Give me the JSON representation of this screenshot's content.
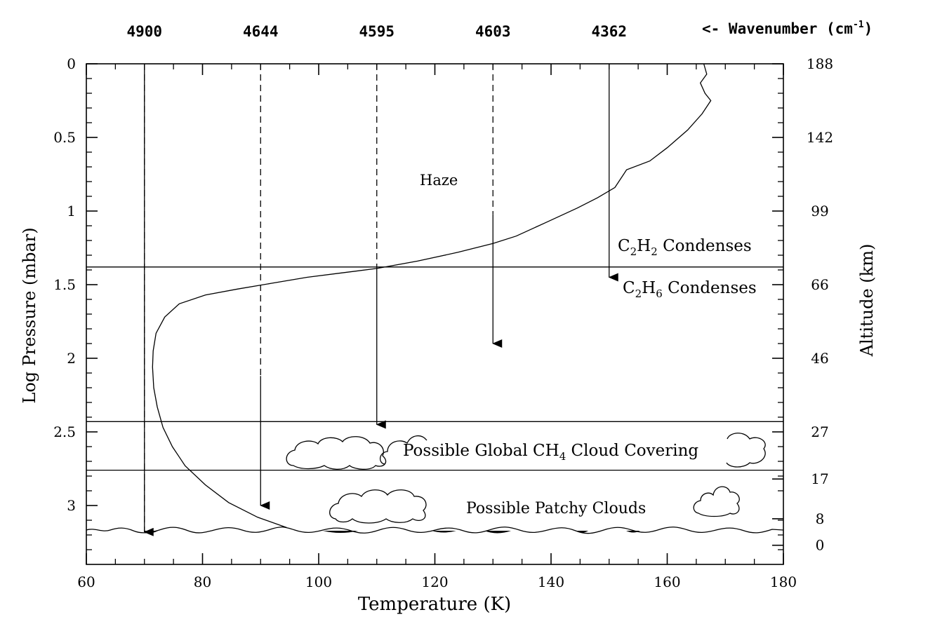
{
  "chart_data": {
    "type": "line",
    "title": "",
    "xlabel": "Temperature (K)",
    "ylabel": "Log Pressure (mbar)",
    "y2label": "Altitude (km)",
    "toplabel": "<- Wavenumber (cm",
    "toplabel_sup": "-1",
    "toplabel_close": ")",
    "xlim": [
      60,
      180
    ],
    "ylim": [
      0,
      3.4
    ],
    "y_inverted": true,
    "x_ticks": [
      60,
      80,
      100,
      120,
      140,
      160,
      180
    ],
    "y_ticks": [
      {
        "value": 0,
        "label": "0"
      },
      {
        "value": 0.5,
        "label": "0.5"
      },
      {
        "value": 1,
        "label": "1"
      },
      {
        "value": 1.5,
        "label": "1.5"
      },
      {
        "value": 2,
        "label": "2"
      },
      {
        "value": 2.5,
        "label": "2.5"
      },
      {
        "value": 3,
        "label": "3"
      }
    ],
    "altitude_ticks": [
      {
        "log_p": 0,
        "label": "188"
      },
      {
        "log_p": 0.5,
        "label": "142"
      },
      {
        "log_p": 1.0,
        "label": "99"
      },
      {
        "log_p": 1.5,
        "label": "66"
      },
      {
        "log_p": 2.0,
        "label": "46"
      },
      {
        "log_p": 2.5,
        "label": "27"
      },
      {
        "log_p": 2.82,
        "label": "17"
      },
      {
        "log_p": 3.09,
        "label": "8"
      },
      {
        "log_p": 3.27,
        "label": "0"
      }
    ],
    "wavenumbers": [
      {
        "temp": 70,
        "label": "4900",
        "arrow_start": 0,
        "arrow_end": 3.18,
        "dash_start": 0,
        "dash_end": 3.18
      },
      {
        "temp": 90,
        "label": "4644",
        "arrow_start": 2.12,
        "arrow_end": 3.0,
        "dash_start": 0,
        "dash_end": 2.12
      },
      {
        "temp": 110,
        "label": "4595",
        "arrow_start": 1.4,
        "arrow_end": 2.45,
        "dash_start": 0,
        "dash_end": 1.4
      },
      {
        "temp": 130,
        "label": "4603",
        "arrow_start": 1.02,
        "arrow_end": 1.9,
        "dash_start": 0,
        "dash_end": 1.02
      },
      {
        "temp": 150,
        "label": "4362",
        "arrow_start": 0,
        "arrow_end": 1.45,
        "dash_start": 0,
        "dash_end": 0
      }
    ],
    "levels": [
      {
        "name": "c2h6-level-line",
        "log_p": 1.38
      },
      {
        "name": "ch4-cloud-top-line",
        "log_p": 2.43
      },
      {
        "name": "ch4-cloud-bottom-line",
        "log_p": 2.76
      }
    ],
    "series": [
      {
        "name": "temperature-profile",
        "points": [
          [
            94.5,
            3.15
          ],
          [
            89.5,
            3.08
          ],
          [
            84.5,
            2.98
          ],
          [
            80.5,
            2.86
          ],
          [
            77.0,
            2.73
          ],
          [
            74.8,
            2.6
          ],
          [
            73.2,
            2.47
          ],
          [
            72.2,
            2.33
          ],
          [
            71.6,
            2.2
          ],
          [
            71.4,
            2.06
          ],
          [
            71.5,
            1.95
          ],
          [
            72.0,
            1.83
          ],
          [
            73.5,
            1.72
          ],
          [
            76.0,
            1.63
          ],
          [
            80.5,
            1.57
          ],
          [
            86.0,
            1.53
          ],
          [
            92.0,
            1.49
          ],
          [
            98.0,
            1.45
          ],
          [
            104.0,
            1.42
          ],
          [
            110.0,
            1.39
          ],
          [
            117.0,
            1.34
          ],
          [
            124.0,
            1.28
          ],
          [
            130.0,
            1.22
          ],
          [
            134.0,
            1.17
          ],
          [
            139.0,
            1.08
          ],
          [
            144.5,
            0.98
          ],
          [
            148.0,
            0.91
          ],
          [
            151.0,
            0.84
          ],
          [
            153.0,
            0.72
          ],
          [
            157.0,
            0.66
          ],
          [
            160.0,
            0.57
          ],
          [
            163.5,
            0.45
          ],
          [
            166.0,
            0.34
          ],
          [
            167.5,
            0.25
          ],
          [
            166.5,
            0.2
          ],
          [
            165.7,
            0.13
          ],
          [
            166.8,
            0.07
          ],
          [
            166.3,
            0.0
          ]
        ]
      }
    ],
    "annotations": {
      "haze": "Haze",
      "c2h2_c": "C",
      "c2h2_s1": "2",
      "c2h2_h": "H",
      "c2h2_s2": "2",
      "c2h2_rest": " Condenses",
      "c2h6_c": "C",
      "c2h6_s1": "2",
      "c2h6_h": "H",
      "c2h6_s2": "6",
      "c2h6_rest": " Condenses",
      "global_cloud_a": "Possible Global CH",
      "global_cloud_sub": "4",
      "global_cloud_b": " Cloud Covering",
      "patchy_clouds": "Possible Patchy Clouds"
    }
  }
}
